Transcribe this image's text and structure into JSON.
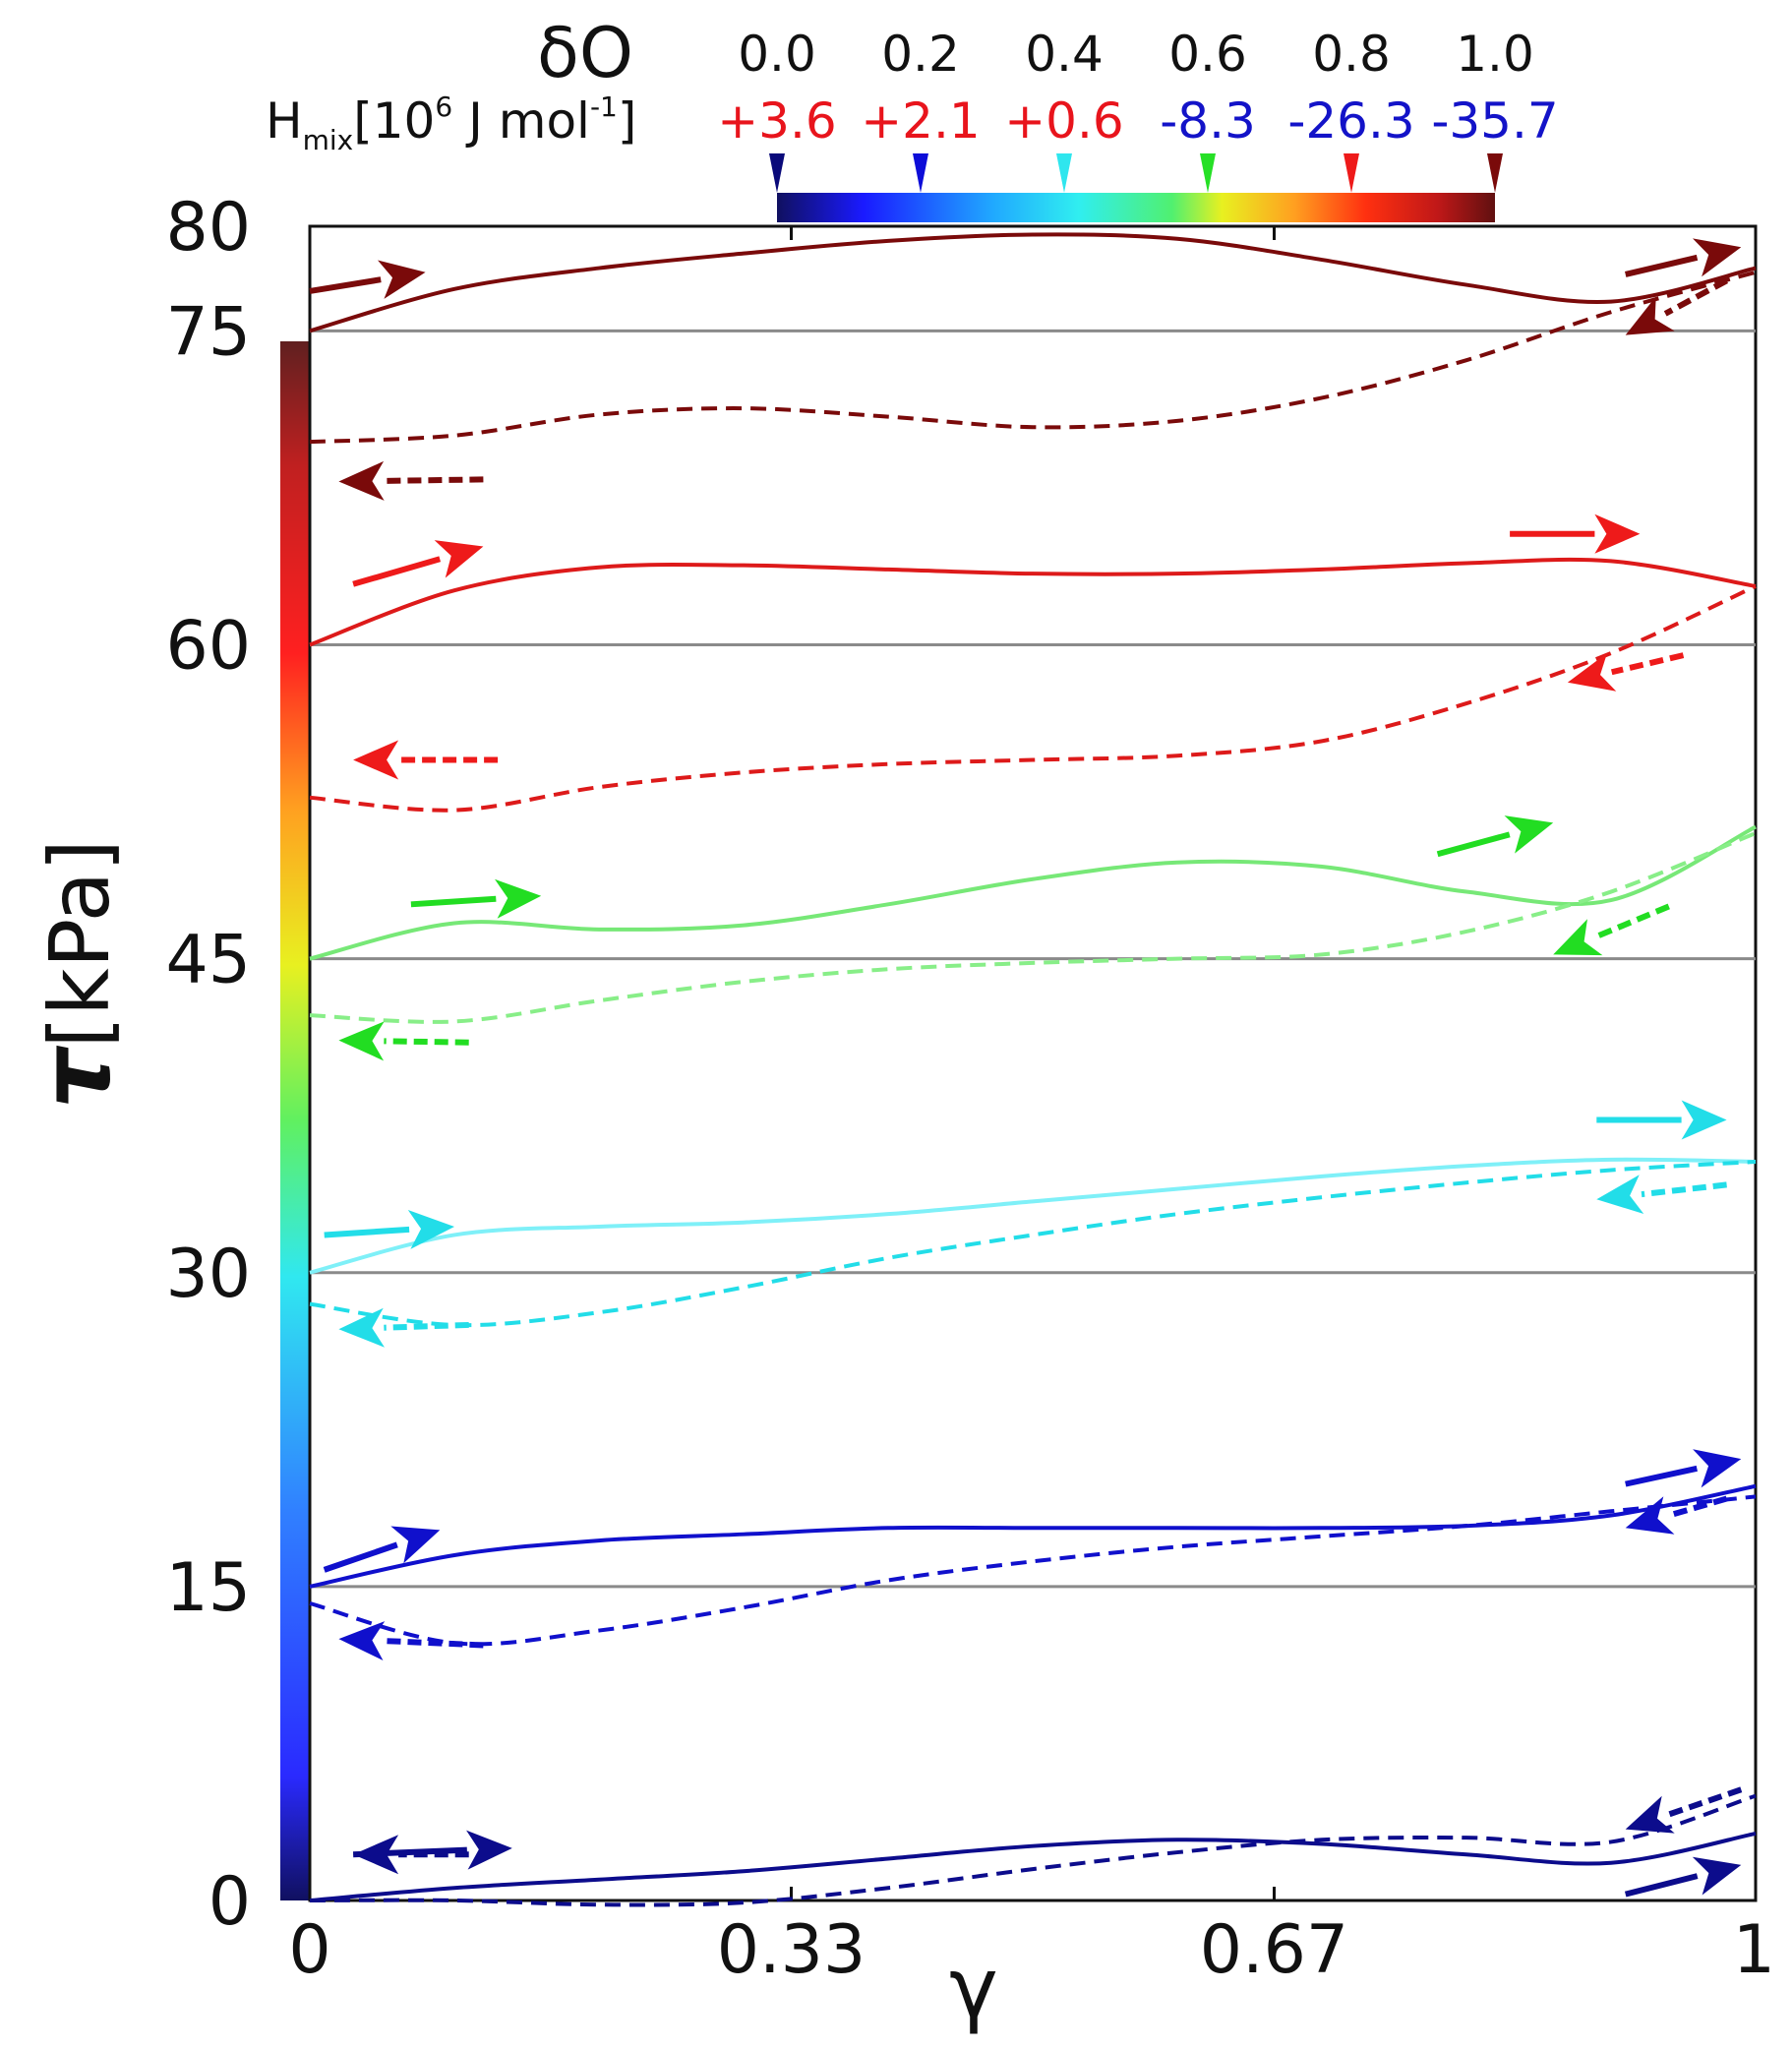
{
  "chart_data": {
    "type": "line",
    "xlabel": "γ",
    "ylabel_symbol": "τ",
    "ylabel_unit": "[kPa]",
    "xlim": [
      0,
      1
    ],
    "ylim": [
      0,
      80
    ],
    "x_ticks": [
      {
        "value": 0,
        "label": "0"
      },
      {
        "value": 0.333,
        "label": "0.33"
      },
      {
        "value": 0.667,
        "label": "0.67"
      },
      {
        "value": 1,
        "label": "1"
      }
    ],
    "y_ticks": [
      0,
      15,
      30,
      45,
      60,
      75,
      80
    ],
    "reference_lines": [
      15,
      30,
      45,
      60,
      75
    ],
    "colorbar": {
      "title": "δO",
      "enthalpy_label": "H",
      "enthalpy_sub": "mix",
      "enthalpy_rest": "[10",
      "enthalpy_exp": "6",
      "enthalpy_unit": " J mol",
      "enthalpy_unit_exp": "-1",
      "enthalpy_close": "]",
      "entries": [
        {
          "delta_o": "0.0",
          "h_mix": "+3.6",
          "h_color": "#e8141c",
          "marker_color": "#0a0a7a"
        },
        {
          "delta_o": "0.2",
          "h_mix": "+2.1",
          "h_color": "#e8141c",
          "marker_color": "#0d0dd8"
        },
        {
          "delta_o": "0.4",
          "h_mix": "+0.6",
          "h_color": "#e8141c",
          "marker_color": "#2fe6ee"
        },
        {
          "delta_o": "0.6",
          "h_mix": "-8.3",
          "h_color": "#1313c8",
          "marker_color": "#26e026"
        },
        {
          "delta_o": "0.8",
          "h_mix": "-26.3",
          "h_color": "#1313c8",
          "marker_color": "#ee1a1a"
        },
        {
          "delta_o": "1.0",
          "h_mix": "-35.7",
          "h_color": "#1313c8",
          "marker_color": "#7a0a0a"
        }
      ]
    },
    "series": [
      {
        "name": "δO = 0.0 loading",
        "delta_o": 0.0,
        "offset_kpa": 0,
        "style": "solid",
        "color": "#0c0c8c",
        "x": [
          0,
          0.1,
          0.2,
          0.3,
          0.4,
          0.5,
          0.6,
          0.7,
          0.8,
          0.9,
          1.0
        ],
        "y": [
          0.0,
          0.6,
          1.0,
          1.4,
          2.0,
          2.6,
          2.9,
          2.7,
          2.2,
          1.8,
          3.2
        ]
      },
      {
        "name": "δO = 0.0 unloading",
        "delta_o": 0.0,
        "offset_kpa": 0,
        "style": "dashed",
        "color": "#0c0c8c",
        "x": [
          0,
          0.1,
          0.2,
          0.3,
          0.4,
          0.5,
          0.6,
          0.7,
          0.8,
          0.9,
          1.0
        ],
        "y": [
          0.0,
          0.0,
          -0.2,
          -0.1,
          0.6,
          1.5,
          2.3,
          2.9,
          3.0,
          2.8,
          5.0
        ]
      },
      {
        "name": "δO = 0.2 loading",
        "delta_o": 0.2,
        "offset_kpa": 15,
        "style": "solid",
        "color": "#1010cc",
        "x": [
          0,
          0.1,
          0.2,
          0.3,
          0.4,
          0.5,
          0.6,
          0.7,
          0.8,
          0.9,
          1.0
        ],
        "y": [
          15.0,
          16.5,
          17.2,
          17.5,
          17.8,
          17.8,
          17.8,
          17.8,
          17.9,
          18.4,
          19.8
        ]
      },
      {
        "name": "δO = 0.2 unloading",
        "delta_o": 0.2,
        "offset_kpa": 15,
        "style": "dashed",
        "color": "#1010cc",
        "x": [
          0,
          0.1,
          0.2,
          0.3,
          0.4,
          0.5,
          0.6,
          0.7,
          0.8,
          0.9,
          1.0
        ],
        "y": [
          14.2,
          12.3,
          12.9,
          14.0,
          15.3,
          16.2,
          16.9,
          17.4,
          17.9,
          18.6,
          19.3
        ]
      },
      {
        "name": "δO = 0.4 loading",
        "delta_o": 0.4,
        "offset_kpa": 30,
        "style": "solid",
        "color": "#7ff0f8",
        "x": [
          0,
          0.1,
          0.2,
          0.3,
          0.4,
          0.5,
          0.6,
          0.7,
          0.8,
          0.9,
          1.0
        ],
        "y": [
          30.0,
          31.8,
          32.2,
          32.4,
          32.8,
          33.4,
          34.0,
          34.6,
          35.1,
          35.4,
          35.3
        ]
      },
      {
        "name": "δO = 0.4 unloading",
        "delta_o": 0.4,
        "offset_kpa": 30,
        "style": "dashed",
        "color": "#22dde8",
        "x": [
          0,
          0.1,
          0.2,
          0.3,
          0.4,
          0.5,
          0.6,
          0.7,
          0.8,
          0.9,
          1.0
        ],
        "y": [
          28.5,
          27.5,
          28.1,
          29.3,
          30.7,
          31.8,
          32.8,
          33.6,
          34.3,
          34.9,
          35.3
        ]
      },
      {
        "name": "δO = 0.6 loading",
        "delta_o": 0.6,
        "offset_kpa": 45,
        "style": "solid",
        "color": "#77e877",
        "x": [
          0,
          0.1,
          0.2,
          0.3,
          0.4,
          0.5,
          0.6,
          0.7,
          0.8,
          0.9,
          1.0
        ],
        "y": [
          45.0,
          46.7,
          46.4,
          46.6,
          47.6,
          48.8,
          49.6,
          49.4,
          48.2,
          47.8,
          51.3
        ]
      },
      {
        "name": "δO = 0.6 unloading",
        "delta_o": 0.6,
        "offset_kpa": 45,
        "style": "dashed",
        "color": "#88ee88",
        "x": [
          0,
          0.1,
          0.2,
          0.3,
          0.4,
          0.5,
          0.6,
          0.7,
          0.8,
          0.9,
          1.0
        ],
        "y": [
          42.3,
          42.0,
          43.0,
          43.9,
          44.5,
          44.8,
          45.0,
          45.2,
          46.3,
          48.2,
          51.0
        ]
      },
      {
        "name": "δO = 0.8 loading",
        "delta_o": 0.8,
        "offset_kpa": 60,
        "style": "solid",
        "color": "#dd1a1a",
        "x": [
          0,
          0.1,
          0.2,
          0.3,
          0.4,
          0.5,
          0.6,
          0.7,
          0.8,
          0.9,
          1.0
        ],
        "y": [
          60.0,
          62.6,
          63.7,
          63.8,
          63.6,
          63.4,
          63.4,
          63.6,
          63.9,
          64.0,
          62.8
        ]
      },
      {
        "name": "δO = 0.8 unloading",
        "delta_o": 0.8,
        "offset_kpa": 60,
        "style": "dashed",
        "color": "#dd1a1a",
        "x": [
          0,
          0.1,
          0.2,
          0.3,
          0.4,
          0.5,
          0.6,
          0.7,
          0.8,
          0.9,
          1.0
        ],
        "y": [
          52.7,
          52.1,
          53.2,
          53.9,
          54.3,
          54.5,
          54.7,
          55.4,
          57.2,
          59.6,
          62.8
        ]
      },
      {
        "name": "δO = 1.0 loading",
        "delta_o": 1.0,
        "offset_kpa": 75,
        "style": "solid",
        "color": "#7a0a0a",
        "x": [
          0,
          0.1,
          0.2,
          0.3,
          0.4,
          0.5,
          0.6,
          0.7,
          0.8,
          0.9,
          1.0
        ],
        "y": [
          75.0,
          77.0,
          78.0,
          78.7,
          79.3,
          79.6,
          79.4,
          78.4,
          77.2,
          76.4,
          78.0
        ]
      },
      {
        "name": "δO = 1.0 unloading",
        "delta_o": 1.0,
        "offset_kpa": 75,
        "style": "dashed",
        "color": "#7a0a0a",
        "x": [
          0,
          0.1,
          0.2,
          0.3,
          0.4,
          0.5,
          0.6,
          0.7,
          0.8,
          0.9,
          1.0
        ],
        "y": [
          69.7,
          70.0,
          71.0,
          71.3,
          70.9,
          70.4,
          70.7,
          71.8,
          73.6,
          75.9,
          77.8
        ]
      }
    ],
    "arrows": [
      {
        "color": "#0c0c8c",
        "style": "solid",
        "x0": 0.03,
        "y0": 2.2,
        "x1": 0.14,
        "y1": 2.5
      },
      {
        "color": "#0c0c8c",
        "style": "dashed",
        "x0": 0.11,
        "y0": 2.2,
        "x1": 0.03,
        "y1": 2.2
      },
      {
        "color": "#0c0c8c",
        "style": "solid",
        "x0": 0.91,
        "y0": 0.3,
        "x1": 0.99,
        "y1": 1.7
      },
      {
        "color": "#0c0c8c",
        "style": "dashed",
        "x0": 0.99,
        "y0": 5.3,
        "x1": 0.91,
        "y1": 3.4
      },
      {
        "color": "#1010cc",
        "style": "solid",
        "x0": 0.01,
        "y0": 15.8,
        "x1": 0.09,
        "y1": 17.7
      },
      {
        "color": "#1010cc",
        "style": "dashed",
        "x0": 0.12,
        "y0": 12.2,
        "x1": 0.02,
        "y1": 12.5
      },
      {
        "color": "#1010cc",
        "style": "solid",
        "x0": 0.91,
        "y0": 19.9,
        "x1": 0.99,
        "y1": 21.1
      },
      {
        "color": "#1010cc",
        "style": "dashed",
        "x0": 0.98,
        "y0": 19.2,
        "x1": 0.91,
        "y1": 17.8
      },
      {
        "color": "#22dde8",
        "style": "solid",
        "x0": 0.01,
        "y0": 31.8,
        "x1": 0.1,
        "y1": 32.2
      },
      {
        "color": "#22dde8",
        "style": "dashed",
        "x0": 0.11,
        "y0": 27.5,
        "x1": 0.02,
        "y1": 27.3
      },
      {
        "color": "#22dde8",
        "style": "solid",
        "x0": 0.89,
        "y0": 37.3,
        "x1": 0.98,
        "y1": 37.3
      },
      {
        "color": "#22dde8",
        "style": "dashed",
        "x0": 0.98,
        "y0": 34.2,
        "x1": 0.89,
        "y1": 33.5
      },
      {
        "color": "#22dd22",
        "style": "solid",
        "x0": 0.07,
        "y0": 47.6,
        "x1": 0.16,
        "y1": 48.0
      },
      {
        "color": "#22dd22",
        "style": "dashed",
        "x0": 0.11,
        "y0": 41.0,
        "x1": 0.02,
        "y1": 41.1
      },
      {
        "color": "#22dd22",
        "style": "solid",
        "x0": 0.78,
        "y0": 50.0,
        "x1": 0.86,
        "y1": 51.5
      },
      {
        "color": "#22dd22",
        "style": "dashed",
        "x0": 0.94,
        "y0": 47.5,
        "x1": 0.86,
        "y1": 45.2
      },
      {
        "color": "#ee1a1a",
        "style": "solid",
        "x0": 0.03,
        "y0": 62.9,
        "x1": 0.12,
        "y1": 64.7
      },
      {
        "color": "#ee1a1a",
        "style": "dashed",
        "x0": 0.13,
        "y0": 54.5,
        "x1": 0.03,
        "y1": 54.5
      },
      {
        "color": "#ee1a1a",
        "style": "solid",
        "x0": 0.83,
        "y0": 65.3,
        "x1": 0.92,
        "y1": 65.3
      },
      {
        "color": "#ee1a1a",
        "style": "dashed",
        "x0": 0.95,
        "y0": 59.5,
        "x1": 0.87,
        "y1": 58.2
      },
      {
        "color": "#7a0a0a",
        "style": "solid",
        "x0": 0.0,
        "y0": 76.9,
        "x1": 0.08,
        "y1": 77.8
      },
      {
        "color": "#7a0a0a",
        "style": "dashed",
        "x0": 0.12,
        "y0": 67.9,
        "x1": 0.02,
        "y1": 67.8
      },
      {
        "color": "#7a0a0a",
        "style": "solid",
        "x0": 0.91,
        "y0": 77.7,
        "x1": 0.99,
        "y1": 79.0
      },
      {
        "color": "#7a0a0a",
        "style": "dashed",
        "x0": 0.98,
        "y0": 77.4,
        "x1": 0.91,
        "y1": 74.8
      }
    ]
  }
}
